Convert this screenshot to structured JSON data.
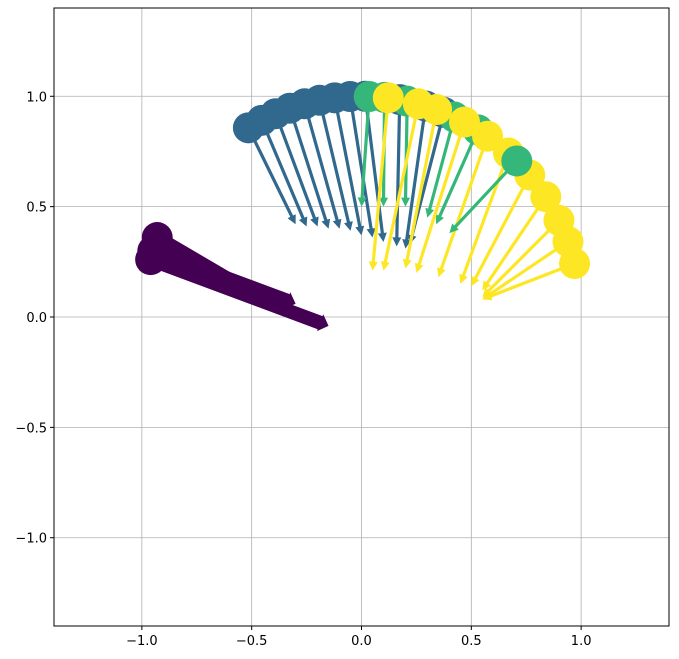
{
  "chart_data": {
    "type": "scatter",
    "subtype": "quiver with scatter markers at arrow tails",
    "title": "",
    "xlabel": "",
    "ylabel": "",
    "xlim": [
      -1.4,
      1.4
    ],
    "ylim": [
      -1.4,
      1.4
    ],
    "grid": true,
    "xticks": [
      -1.0,
      -0.5,
      0.0,
      0.5,
      1.0
    ],
    "yticks": [
      -1.0,
      -0.5,
      0.0,
      0.5,
      1.0
    ],
    "xtick_labels": [
      "−1.0",
      "−0.5",
      "0.0",
      "0.5",
      "1.0"
    ],
    "ytick_labels": [
      "−1.0",
      "−0.5",
      "0.0",
      "0.5",
      "1.0"
    ],
    "colors": {
      "purple": "#440154",
      "blue": "#31688e",
      "green": "#35b779",
      "yellow": "#fde725"
    },
    "arrows": [
      {
        "group": "blue",
        "x": -0.515,
        "y": 0.857,
        "u": 0.215,
        "v": -0.437
      },
      {
        "group": "blue",
        "x": -0.454,
        "y": 0.891,
        "u": 0.204,
        "v": -0.481
      },
      {
        "group": "blue",
        "x": -0.391,
        "y": 0.921,
        "u": 0.191,
        "v": -0.511
      },
      {
        "group": "blue",
        "x": -0.326,
        "y": 0.946,
        "u": 0.176,
        "v": -0.546
      },
      {
        "group": "blue",
        "x": -0.259,
        "y": 0.966,
        "u": 0.159,
        "v": -0.566
      },
      {
        "group": "blue",
        "x": -0.191,
        "y": 0.982,
        "u": 0.141,
        "v": -0.592
      },
      {
        "group": "blue",
        "x": -0.122,
        "y": 0.993,
        "u": 0.122,
        "v": -0.623
      },
      {
        "group": "blue",
        "x": -0.052,
        "y": 0.999,
        "u": 0.102,
        "v": -0.639
      },
      {
        "group": "blue",
        "x": 0.017,
        "y": 1.0,
        "u": 0.083,
        "v": -0.66
      },
      {
        "group": "blue",
        "x": 0.174,
        "y": 0.985,
        "u": -0.014,
        "v": -0.665
      },
      {
        "group": "blue",
        "x": 0.292,
        "y": 0.956,
        "u": -0.092,
        "v": -0.646
      },
      {
        "group": "blue",
        "x": 0.375,
        "y": 0.927,
        "u": -0.155,
        "v": -0.597
      },
      {
        "group": "green",
        "x": 0.035,
        "y": 0.999,
        "u": -0.035,
        "v": -0.499
      },
      {
        "group": "green",
        "x": 0.105,
        "y": 0.995,
        "u": -0.005,
        "v": -0.495
      },
      {
        "group": "green",
        "x": 0.208,
        "y": 0.978,
        "u": -0.008,
        "v": -0.478
      },
      {
        "group": "green",
        "x": 0.423,
        "y": 0.906,
        "u": -0.123,
        "v": -0.456
      },
      {
        "group": "green",
        "x": 0.53,
        "y": 0.848,
        "u": -0.19,
        "v": -0.428
      },
      {
        "group": "yellow",
        "x": 0.122,
        "y": 0.993,
        "u": -0.072,
        "v": -0.783
      },
      {
        "group": "yellow",
        "x": 0.259,
        "y": 0.966,
        "u": -0.159,
        "v": -0.756
      },
      {
        "group": "yellow",
        "x": 0.342,
        "y": 0.94,
        "u": -0.142,
        "v": -0.72
      },
      {
        "group": "yellow",
        "x": 0.469,
        "y": 0.883,
        "u": -0.219,
        "v": -0.683
      },
      {
        "group": "yellow",
        "x": 0.574,
        "y": 0.819,
        "u": -0.224,
        "v": -0.639
      },
      {
        "group": "yellow",
        "x": 0.669,
        "y": 0.743,
        "u": -0.219,
        "v": -0.593
      },
      {
        "group": "yellow",
        "x": 0.766,
        "y": 0.643,
        "u": -0.266,
        "v": -0.503
      },
      {
        "group": "yellow",
        "x": 0.839,
        "y": 0.545,
        "u": -0.289,
        "v": -0.425
      },
      {
        "group": "yellow",
        "x": 0.899,
        "y": 0.438,
        "u": -0.349,
        "v": -0.348
      },
      {
        "group": "yellow",
        "x": 0.94,
        "y": 0.342,
        "u": -0.39,
        "v": -0.262
      },
      {
        "group": "yellow",
        "x": 0.97,
        "y": 0.242,
        "u": -0.42,
        "v": -0.162
      },
      {
        "group": "green",
        "x": 0.707,
        "y": 0.707,
        "u": -0.307,
        "v": -0.327
      },
      {
        "group": "purple",
        "x": -0.96,
        "y": 0.26,
        "u": 0.81,
        "v": -0.3
      },
      {
        "group": "purple",
        "x": -0.95,
        "y": 0.3,
        "u": 0.65,
        "v": -0.24
      },
      {
        "group": "purple",
        "x": -0.93,
        "y": 0.36,
        "u": 0.48,
        "v": -0.28
      }
    ]
  }
}
